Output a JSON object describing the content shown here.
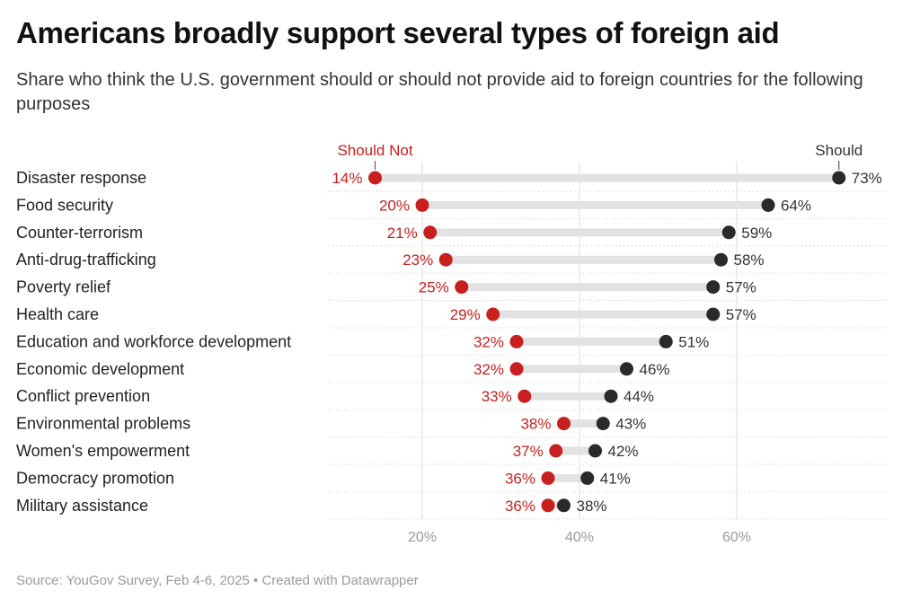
{
  "header": {
    "title": "Americans broadly support several types of foreign aid",
    "subtitle": "Share who think the U.S. government should or should not provide aid to foreign countries for the following purposes"
  },
  "footer": {
    "source": "Source: YouGov Survey, Feb 4-6, 2025 • Created with Datawrapper"
  },
  "colors": {
    "should_not": "#c8201f",
    "should": "#2a2a2a",
    "range_bar": "#e2e2e2"
  },
  "chart_data": {
    "type": "dot-range",
    "title": "Americans broadly support several types of foreign aid",
    "subtitle": "Share who think the U.S. government should or should not provide aid to foreign countries for the following purposes",
    "xlim": [
      0,
      80
    ],
    "x_ticks": [
      20,
      40,
      60
    ],
    "x_tick_labels": [
      "20%",
      "40%",
      "60%"
    ],
    "grid": true,
    "categories": [
      "Disaster response",
      "Food security",
      "Counter-terrorism",
      "Anti-drug-trafficking",
      "Poverty relief",
      "Health care",
      "Education and workforce development",
      "Economic development",
      "Conflict prevention",
      "Environmental problems",
      "Women's empowerment",
      "Democracy promotion",
      "Military assistance"
    ],
    "series": [
      {
        "name": "Should Not",
        "values": [
          14,
          20,
          21,
          23,
          25,
          29,
          32,
          32,
          33,
          38,
          37,
          36,
          36
        ]
      },
      {
        "name": "Should",
        "values": [
          73,
          64,
          59,
          58,
          57,
          57,
          51,
          46,
          44,
          43,
          42,
          41,
          38
        ]
      }
    ],
    "value_suffix": "%"
  }
}
